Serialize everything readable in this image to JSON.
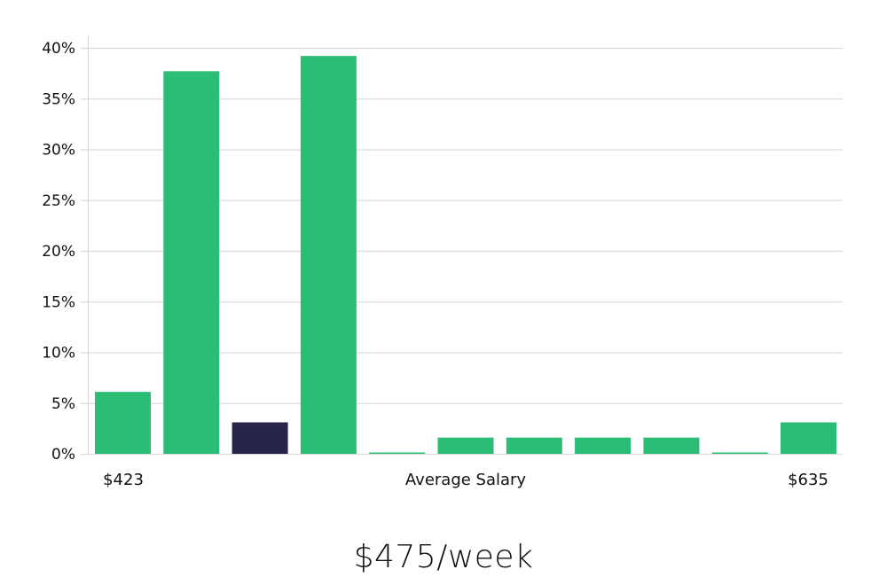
{
  "chart_data": {
    "type": "bar",
    "title": "",
    "xlabel": "Average Salary",
    "ylabel": "",
    "ylim": [
      0,
      40
    ],
    "yticks": [
      "0%",
      "5%",
      "10%",
      "15%",
      "20%",
      "25%",
      "30%",
      "35%",
      "40%"
    ],
    "x_range_labels": {
      "min": "$423",
      "max": "$635"
    },
    "grid": true,
    "legend": null,
    "categories": [
      "bin1",
      "bin2",
      "bin3",
      "bin4",
      "bin5",
      "bin6",
      "bin7",
      "bin8",
      "bin9",
      "bin10",
      "bin11"
    ],
    "values": [
      6.1,
      37.7,
      3.1,
      39.2,
      0.0,
      1.6,
      1.6,
      1.6,
      1.6,
      0.0,
      3.1
    ],
    "highlight_index": 2,
    "colors": {
      "default": "#2bbd76",
      "highlight": "#27244a",
      "grid": "#dcdcdc",
      "axis": "#cccccc"
    }
  },
  "axis": {
    "min_label": "$423",
    "center_label": "Average Salary",
    "max_label": "$635"
  },
  "headline": {
    "value": "$475/week"
  }
}
